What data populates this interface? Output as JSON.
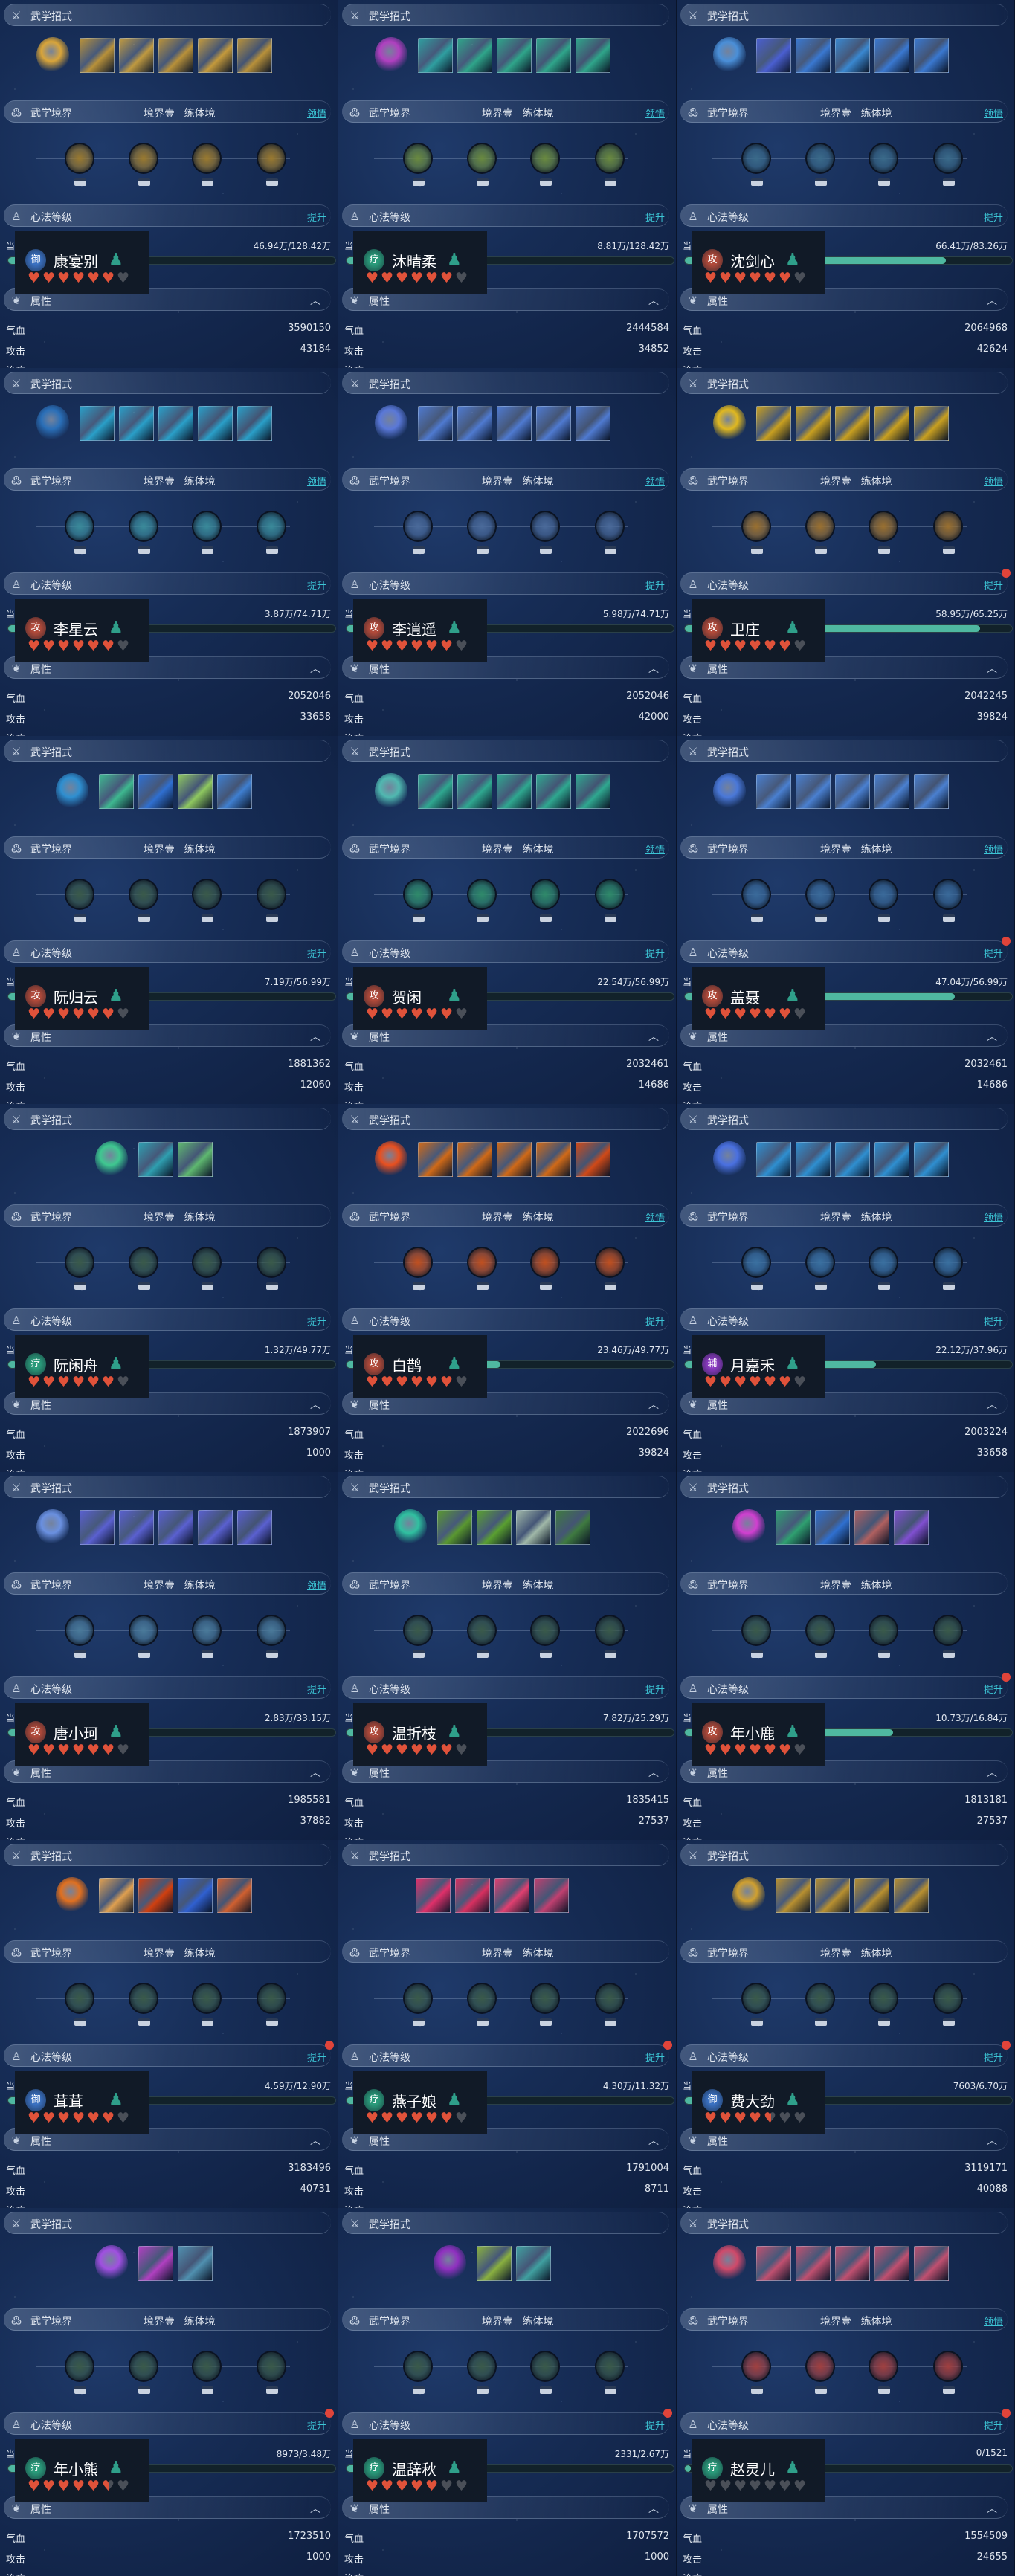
{
  "labels": {
    "skills_title": "武学招式",
    "realm_title": "武学境界",
    "realm_stage": "境界壹 练体境",
    "comprehend": "领悟",
    "xinfa_title": "心法等级",
    "upgrade": "提升",
    "current": "当",
    "attr_title": "属性",
    "hp": "气血",
    "atk": "攻击",
    "heal": "治疗"
  },
  "icons": {
    "skills": "sword-icon",
    "realm": "swirl-icon",
    "xinfa": "meditating-figure-icon",
    "attr": "lotus-icon",
    "collapse": "caret-up-icon",
    "heart": "heart-icon",
    "figure": "straw-hat-figure-icon"
  },
  "colors": {
    "accent": "#3cc4d4",
    "progress": "#4fb8a0",
    "heart": "#e0523a",
    "dot": "#e0443a",
    "locked_node": "#3a5a4a"
  },
  "cells": [
    {
      "name": "康宴别",
      "role": "御",
      "role_color": "#3a70c0",
      "progress_text": "46.94万/128.42万",
      "progress": 0.366,
      "hearts": 6,
      "hp": "3590150",
      "atk": "43184",
      "comprehend": true,
      "dot": false,
      "realm_color": "#9a7a30",
      "orb": "#d9a53a",
      "cards": [
        "#b8913a",
        "#c09a40",
        "#b8913a",
        "#c49a3c",
        "#b8913a"
      ]
    },
    {
      "name": "沐晴柔",
      "role": "疗",
      "role_color": "#2a9a7a",
      "progress_text": "8.81万/128.42万",
      "progress": 0.069,
      "hearts": 6,
      "hp": "2444584",
      "atk": "34852",
      "comprehend": true,
      "dot": false,
      "realm_color": "#6a8a40",
      "orb": "#b040c0",
      "cards": [
        "#2f9fa0",
        "#2fa58a",
        "#2fa58a",
        "#2fa58a",
        "#2fa58a"
      ]
    },
    {
      "name": "沈剑心",
      "role": "攻",
      "role_color": "#b04a3a",
      "progress_text": "66.41万/83.26万",
      "progress": 0.798,
      "hearts": 6,
      "hp": "2064968",
      "atk": "42624",
      "comprehend": true,
      "dot": false,
      "realm_color": "#3a6a8a",
      "orb": "#4a8fd8",
      "cards": [
        "#4a5fd0",
        "#3a78d0",
        "#3a88d0",
        "#3a78d0",
        "#3a78d0"
      ]
    },
    {
      "name": "李星云",
      "role": "攻",
      "role_color": "#b04a3a",
      "progress_text": "3.87万/74.71万",
      "progress": 0.052,
      "hearts": 6,
      "hp": "2052046",
      "atk": "33658",
      "comprehend": true,
      "dot": false,
      "realm_color": "#3a8a9a",
      "orb": "#2a6fb8",
      "cards": [
        "#2a9fc8",
        "#2a9fc8",
        "#2a9fc8",
        "#2a9fc8",
        "#2a9fc8"
      ]
    },
    {
      "name": "李逍遥",
      "role": "攻",
      "role_color": "#b04a3a",
      "progress_text": "5.98万/74.71万",
      "progress": 0.08,
      "hearts": 6,
      "hp": "2052046",
      "atk": "42000",
      "comprehend": true,
      "dot": false,
      "realm_color": "#4a6a9a",
      "orb": "#5a78d8",
      "cards": [
        "#4f7ad0",
        "#4f7ad0",
        "#4f7ad0",
        "#4f7ad0",
        "#4f7ad0"
      ]
    },
    {
      "name": "卫庄",
      "role": "攻",
      "role_color": "#b04a3a",
      "progress_text": "58.95万/65.25万",
      "progress": 0.903,
      "hearts": 6,
      "hp": "2042245",
      "atk": "39824",
      "comprehend": true,
      "dot": true,
      "realm_color": "#9a7030",
      "orb": "#e0b820",
      "cards": [
        "#c9a020",
        "#c9a020",
        "#c9a020",
        "#c9a020",
        "#c9a020"
      ]
    },
    {
      "name": "阮归云",
      "role": "攻",
      "role_color": "#b04a3a",
      "progress_text": "7.19万/56.99万",
      "progress": 0.126,
      "hearts": 6,
      "hp": "1881362",
      "atk": "12060",
      "comprehend": false,
      "dot": false,
      "realm_color": "#3a5a4a",
      "orb": "#2f8fd0",
      "cards": [
        "#3fb890",
        "#2f6fd0",
        "#8fc860",
        "#3f7fd0"
      ]
    },
    {
      "name": "贺闲",
      "role": "攻",
      "role_color": "#b04a3a",
      "progress_text": "22.54万/56.99万",
      "progress": 0.396,
      "hearts": 6,
      "hp": "2032461",
      "atk": "14686",
      "comprehend": true,
      "dot": false,
      "realm_color": "#2f8a6a",
      "orb": "#50b8b0",
      "cards": [
        "#2fa890",
        "#2fa890",
        "#2fa890",
        "#2fa890",
        "#2fa890"
      ]
    },
    {
      "name": "盖聂",
      "role": "攻",
      "role_color": "#b04a3a",
      "progress_text": "47.04万/56.99万",
      "progress": 0.825,
      "hearts": 6,
      "hp": "2032461",
      "atk": "14686",
      "comprehend": true,
      "dot": true,
      "realm_color": "#3a6a9a",
      "orb": "#4a78d8",
      "cards": [
        "#4a80d0",
        "#4a80d0",
        "#4a80d0",
        "#4a80d0",
        "#4a80d0"
      ]
    },
    {
      "name": "阮闲舟",
      "role": "疗",
      "role_color": "#2a9a7a",
      "progress_text": "1.32万/49.77万",
      "progress": 0.027,
      "hearts": 6,
      "hp": "1873907",
      "atk": "1000",
      "comprehend": false,
      "dot": false,
      "realm_color": "#3a5a4a",
      "orb": "#3fc890",
      "cards": [
        "#2f9fb0",
        "#5fb870"
      ]
    },
    {
      "name": "白鹊",
      "role": "攻",
      "role_color": "#b04a3a",
      "progress_text": "23.46万/49.77万",
      "progress": 0.471,
      "hearts": 6,
      "hp": "2022696",
      "atk": "39824",
      "comprehend": true,
      "dot": false,
      "realm_color": "#c05020",
      "orb": "#e85020",
      "cards": [
        "#d06a18",
        "#d06a18",
        "#d06a18",
        "#d06a18",
        "#d04a18"
      ]
    },
    {
      "name": "月嘉禾",
      "role": "辅",
      "role_color": "#8a3ac0",
      "progress_text": "22.12万/37.96万",
      "progress": 0.583,
      "hearts": 6,
      "hp": "2003224",
      "atk": "33658",
      "comprehend": true,
      "dot": false,
      "realm_color": "#3a70a0",
      "orb": "#4a70e0",
      "cards": [
        "#2f8fd0",
        "#2f8fd0",
        "#2f8fd0",
        "#2f8fd0",
        "#2f8fd0"
      ]
    },
    {
      "name": "唐小珂",
      "role": "攻",
      "role_color": "#b04a3a",
      "progress_text": "2.83万/33.15万",
      "progress": 0.085,
      "hearts": 6,
      "hp": "1985581",
      "atk": "37882",
      "comprehend": true,
      "dot": false,
      "realm_color": "#4a7a9a",
      "orb": "#6a90e0",
      "cards": [
        "#5a60d0",
        "#5a60d0",
        "#5a60d0",
        "#5a60d0",
        "#5a60d0"
      ]
    },
    {
      "name": "温折枝",
      "role": "攻",
      "role_color": "#b04a3a",
      "progress_text": "7.82万/25.29万",
      "progress": 0.309,
      "hearts": 6,
      "hp": "1835415",
      "atk": "27537",
      "comprehend": false,
      "dot": false,
      "realm_color": "#3a5a4a",
      "orb": "#30c0a0",
      "cards": [
        "#5a9830",
        "#5aa030",
        "#a0b8a8",
        "#3f7a40"
      ]
    },
    {
      "name": "年小鹿",
      "role": "攻",
      "role_color": "#b04a3a",
      "progress_text": "10.73万/16.84万",
      "progress": 0.637,
      "hearts": 6,
      "hp": "1813181",
      "atk": "27537",
      "comprehend": false,
      "dot": true,
      "realm_color": "#3a5a4a",
      "orb": "#d040d0",
      "cards": [
        "#2fa070",
        "#2f70d0",
        "#b06060",
        "#8050d0"
      ]
    },
    {
      "name": "茸茸",
      "role": "御",
      "role_color": "#3a70c0",
      "progress_text": "4.59万/12.90万",
      "progress": 0.356,
      "hearts": 6,
      "hp": "3183496",
      "atk": "40731",
      "comprehend": false,
      "dot": true,
      "realm_color": "#3a5a4a",
      "orb": "#e07020",
      "cards": [
        "#e0a050",
        "#d04010",
        "#3060d0",
        "#d06030"
      ]
    },
    {
      "name": "燕子娘",
      "role": "疗",
      "role_color": "#2a9a7a",
      "progress_text": "4.30万/11.32万",
      "progress": 0.38,
      "hearts": 6,
      "hp": "1791004",
      "atk": "8711",
      "comprehend": false,
      "dot": true,
      "realm_color": "#3a5a4a",
      "orb": null,
      "cards": [
        "#e0306a",
        "#d83060",
        "#e04070",
        "#c04070"
      ]
    },
    {
      "name": "费大劲",
      "role": "御",
      "role_color": "#3a70c0",
      "progress_text": "7603/6.70万",
      "progress": 0.113,
      "hearts": 4.5,
      "hp": "3119171",
      "atk": "40088",
      "comprehend": false,
      "dot": true,
      "realm_color": "#3a5a4a",
      "orb": "#d0a030",
      "cards": [
        "#b89030",
        "#b89030",
        "#b89030",
        "#b89030"
      ]
    },
    {
      "name": "年小熊",
      "role": "疗",
      "role_color": "#2a9a7a",
      "progress_text": "8973/3.48万",
      "progress": 0.258,
      "hearts": 5.5,
      "hp": "1723510",
      "atk": "1000",
      "comprehend": false,
      "dot": true,
      "realm_color": "#3a5a4a",
      "orb": "#a050e0",
      "cards": [
        "#b040c0",
        "#5090b0"
      ]
    },
    {
      "name": "温辞秋",
      "role": "疗",
      "role_color": "#2a9a7a",
      "progress_text": "2331/2.67万",
      "progress": 0.087,
      "hearts": 5,
      "hp": "1707572",
      "atk": "1000",
      "comprehend": false,
      "dot": true,
      "realm_color": "#3a5a4a",
      "orb": "#9030c0",
      "cards": [
        "#8ab040",
        "#40a0a0"
      ]
    },
    {
      "name": "赵灵儿",
      "role": "疗",
      "role_color": "#2a9a7a",
      "progress_text": "0/1521",
      "progress": 0,
      "hearts": 0,
      "hp": "1554509",
      "atk": "24655",
      "comprehend": true,
      "dot": true,
      "realm_color": "#a04040",
      "orb": "#d04a6a",
      "cards": [
        "#c05070",
        "#c05070",
        "#c05070",
        "#c05070",
        "#c05070"
      ]
    }
  ]
}
